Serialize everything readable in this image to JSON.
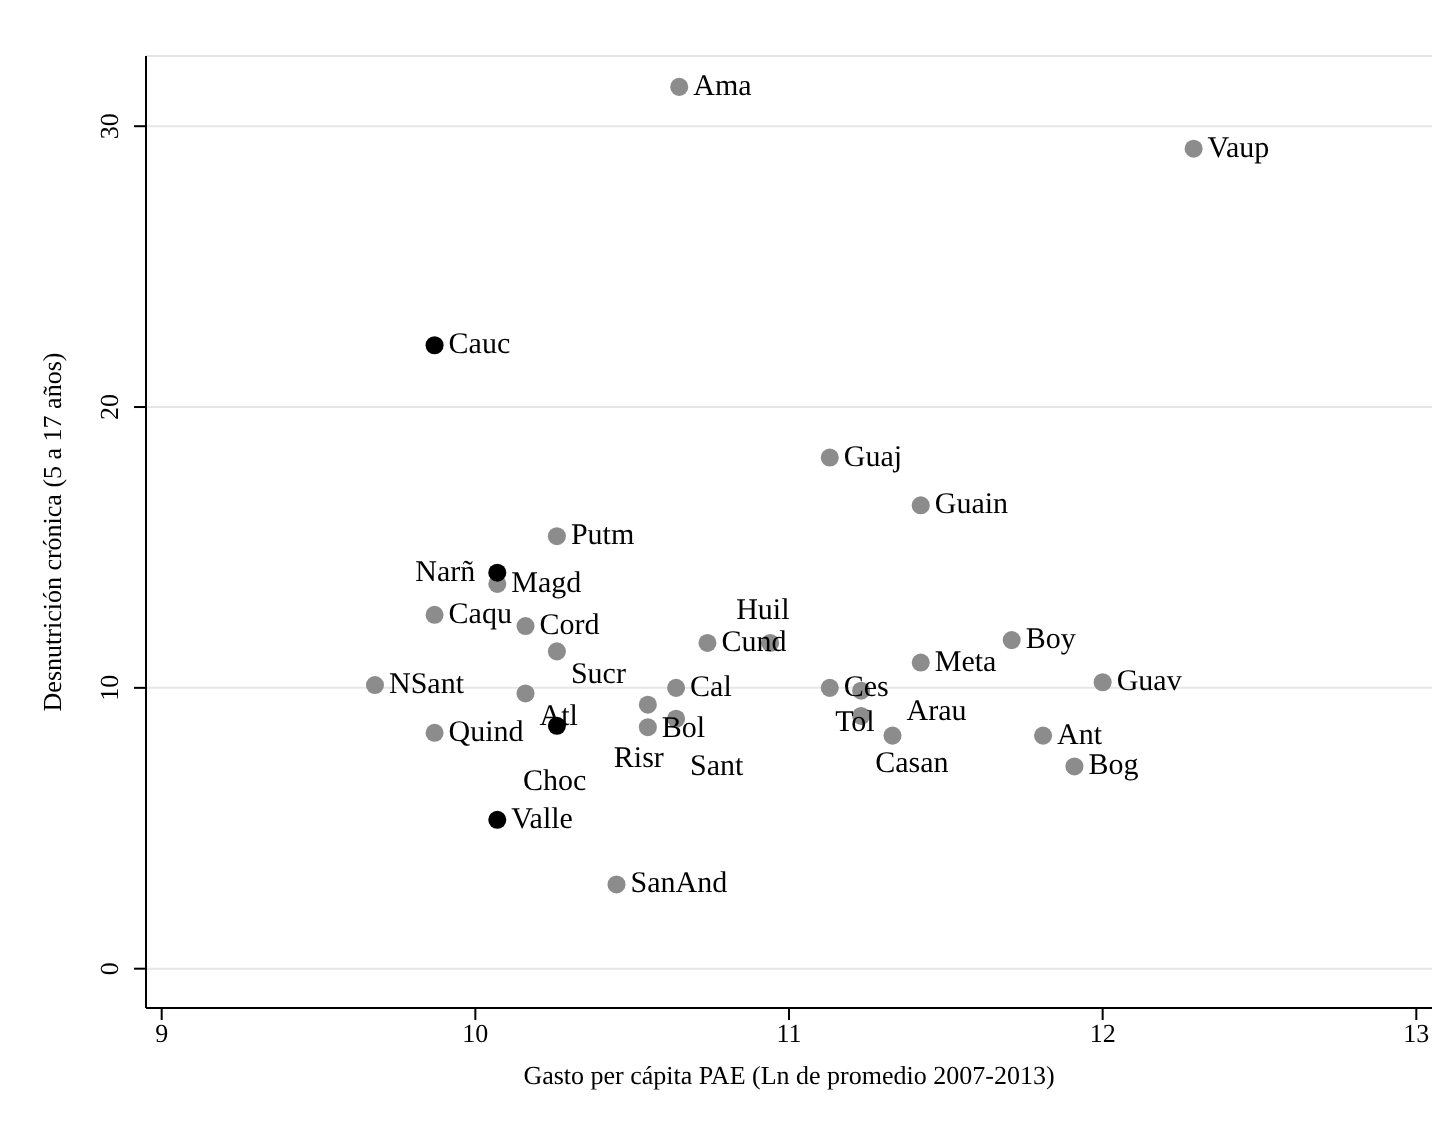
{
  "chart_data": {
    "type": "scatter",
    "xlabel": "Gasto per cápita PAE (Ln de promedio 2007-2013)",
    "ylabel": "Desnutrición crónica (5 a 17 años)",
    "xlim": [
      8.95,
      13.05
    ],
    "xticks": [
      9,
      10,
      11,
      12,
      13
    ],
    "ylim": [
      -1.4,
      32.5
    ],
    "yticks": [
      0,
      10,
      20,
      30
    ],
    "grid": "y",
    "marker": "circle",
    "series": [
      {
        "color": "#8c8c8c",
        "x": [
          10.65,
          12.29,
          11.13,
          11.42,
          10.26,
          10.07,
          9.87,
          10.16,
          10.26,
          10.74,
          10.94,
          11.71,
          11.42,
          9.68,
          10.16,
          10.64,
          10.55,
          9.87,
          10.55,
          10.64,
          11.13,
          11.23,
          11.23,
          11.33,
          11.81,
          11.91,
          10.45,
          12.0
        ],
        "values": [
          31.4,
          29.2,
          18.2,
          16.5,
          15.4,
          13.7,
          12.6,
          12.2,
          11.3,
          11.6,
          11.6,
          11.7,
          10.9,
          10.1,
          9.8,
          10.0,
          9.4,
          8.4,
          8.6,
          8.9,
          10.0,
          9.9,
          9.0,
          8.3,
          8.3,
          7.2,
          3.0,
          10.2
        ]
      },
      {
        "color": "#000000",
        "x": [
          9.87,
          10.07,
          10.26,
          10.07
        ],
        "values": [
          22.2,
          14.1,
          8.65,
          5.3
        ]
      }
    ],
    "annotations": [
      {
        "text": "Ama",
        "x": 10.65,
        "y": 31.4
      },
      {
        "text": "Vaup",
        "x": 12.29,
        "y": 29.2
      },
      {
        "text": "Guaj",
        "x": 11.13,
        "y": 18.2
      },
      {
        "text": "Guain",
        "x": 11.42,
        "y": 16.5
      },
      {
        "text": "Putm",
        "x": 10.26,
        "y": 15.4
      },
      {
        "text": "Magd",
        "x": 10.07,
        "y": 13.7
      },
      {
        "text": "Caqu",
        "x": 9.87,
        "y": 12.6
      },
      {
        "text": "Cord",
        "x": 10.16,
        "y": 12.2
      },
      {
        "text": "Sucr",
        "x": 10.26,
        "y": 11.3
      },
      {
        "text": "Cund",
        "x": 10.74,
        "y": 11.6
      },
      {
        "text": "Huil",
        "x": 10.94,
        "y": 11.6
      },
      {
        "text": "Boy",
        "x": 11.71,
        "y": 11.7
      },
      {
        "text": "Meta",
        "x": 11.42,
        "y": 10.9
      },
      {
        "text": "NSant",
        "x": 9.68,
        "y": 10.1
      },
      {
        "text": "Atl",
        "x": 10.16,
        "y": 9.8
      },
      {
        "text": "Cal",
        "x": 10.64,
        "y": 10.0
      },
      {
        "text": "Bol",
        "x": 10.55,
        "y": 9.4
      },
      {
        "text": "Quind",
        "x": 9.87,
        "y": 8.4
      },
      {
        "text": "Risr",
        "x": 10.55,
        "y": 8.6
      },
      {
        "text": "Sant",
        "x": 10.64,
        "y": 8.9
      },
      {
        "text": "Ces",
        "x": 11.13,
        "y": 10.0
      },
      {
        "text": "Tol",
        "x": 11.23,
        "y": 9.9
      },
      {
        "text": "Casan",
        "x": 11.23,
        "y": 9.0
      },
      {
        "text": "Arau",
        "x": 11.33,
        "y": 8.3
      },
      {
        "text": "Ant",
        "x": 11.81,
        "y": 8.3
      },
      {
        "text": "Bog",
        "x": 11.91,
        "y": 7.2
      },
      {
        "text": "SanAnd",
        "x": 10.45,
        "y": 3.0
      },
      {
        "text": "Guav",
        "x": 12.0,
        "y": 10.2
      },
      {
        "text": "Cauc",
        "x": 9.87,
        "y": 22.2
      },
      {
        "text": "Narñ",
        "x": 10.07,
        "y": 14.1
      },
      {
        "text": "Choc",
        "x": 10.26,
        "y": 8.65
      },
      {
        "text": "Valle",
        "x": 10.07,
        "y": 5.3
      }
    ]
  }
}
